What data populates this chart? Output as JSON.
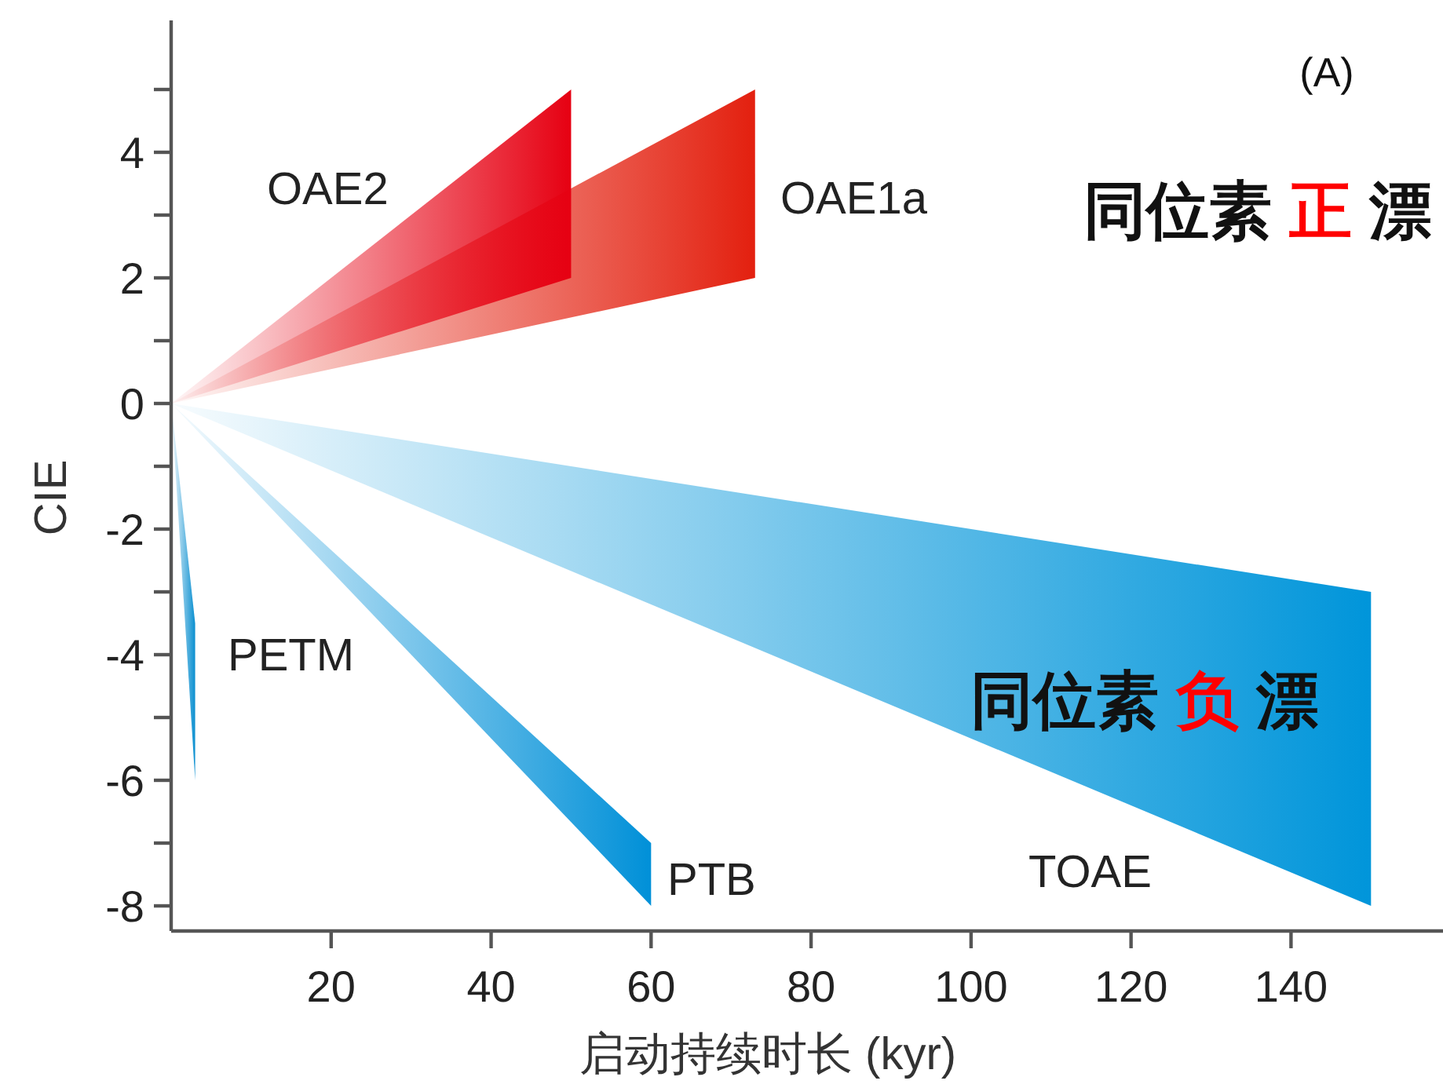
{
  "chart_data": {
    "type": "area",
    "xlabel": "启动持续时长 (kyr)",
    "ylabel": "CIE",
    "xlim": [
      0,
      159
    ],
    "ylim": [
      -8.4,
      6.1
    ],
    "xticks": [
      20,
      40,
      60,
      80,
      100,
      120,
      140
    ],
    "yticks": [
      -8,
      {
        "value": -7,
        "label": null
      },
      -6,
      {
        "value": -5,
        "label": null
      },
      -4,
      {
        "value": -3,
        "label": null
      },
      -2,
      {
        "value": -1,
        "label": null
      },
      0,
      {
        "value": 1,
        "label": null
      },
      2,
      {
        "value": 3,
        "label": null
      },
      4,
      {
        "value": 5,
        "label": null
      }
    ],
    "series": [
      {
        "name": "OAE2",
        "color": "#e60012",
        "x": [
          0,
          50,
          50
        ],
        "values": [
          0,
          5,
          2
        ]
      },
      {
        "name": "OAE1a",
        "color": "#e3200f",
        "x": [
          0,
          73,
          73
        ],
        "values": [
          0,
          5,
          2
        ]
      },
      {
        "name": "PETM",
        "color": "#0a8fd0",
        "x": [
          0,
          3,
          3
        ],
        "values": [
          0,
          -3.5,
          -6
        ]
      },
      {
        "name": "PTB",
        "color": "#0090d8",
        "x": [
          0,
          60,
          60
        ],
        "values": [
          0,
          -7,
          -8
        ]
      },
      {
        "name": "TOAE",
        "color": "#0095da",
        "x": [
          0,
          150,
          150
        ],
        "values": [
          0,
          -3,
          -8
        ]
      }
    ],
    "annotations": [
      "(A)",
      "同位素 正 漂",
      "同位素 负 漂"
    ]
  }
}
